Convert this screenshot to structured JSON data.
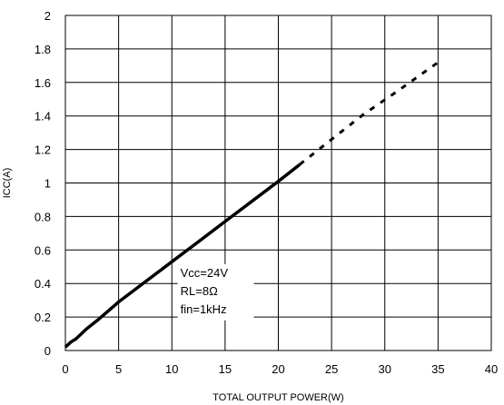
{
  "chart_data": {
    "type": "line",
    "title": "",
    "xlabel": "TOTAL OUTPUT POWER(W)",
    "ylabel": "ICC(A)",
    "xlim": [
      0,
      40
    ],
    "ylim": [
      0,
      2
    ],
    "x_ticks": [
      0,
      5,
      10,
      15,
      20,
      25,
      30,
      35,
      40
    ],
    "y_ticks": [
      0,
      0.2,
      0.4,
      0.6,
      0.8,
      1,
      1.2,
      1.4,
      1.6,
      1.8,
      2
    ],
    "x_tick_labels": [
      "0",
      "5",
      "10",
      "15",
      "20",
      "25",
      "30",
      "35",
      "40"
    ],
    "y_tick_labels": [
      "0",
      "0.2",
      "0.4",
      "0.6",
      "0.8",
      "1",
      "1.2",
      "1.4",
      "1.6",
      "1.8",
      "2"
    ],
    "grid": true,
    "series": [
      {
        "style": "solid",
        "x": [
          0,
          0.5,
          1,
          2,
          3,
          5,
          7.5,
          10,
          12.5,
          15,
          17.5,
          20,
          22
        ],
        "y": [
          0.02,
          0.05,
          0.07,
          0.13,
          0.18,
          0.29,
          0.41,
          0.53,
          0.65,
          0.77,
          0.89,
          1.01,
          1.11
        ]
      },
      {
        "style": "dashed",
        "x": [
          22,
          25,
          28,
          31,
          35
        ],
        "y": [
          1.11,
          1.26,
          1.41,
          1.54,
          1.72
        ]
      }
    ],
    "annotation": {
      "lines": [
        "Vcc=24V",
        "RL=8Ω",
        "fin=1kHz"
      ],
      "anchor_x": 10.8,
      "anchor_y": 0.44
    }
  }
}
